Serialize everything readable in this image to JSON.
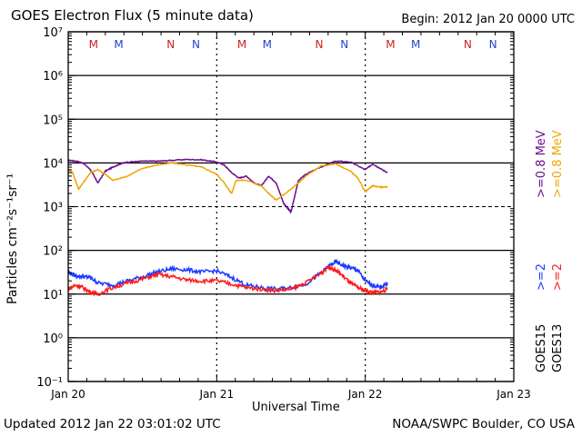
{
  "header": {
    "title": "GOES Electron Flux (5 minute data)",
    "begin": "Begin: 2012 Jan 20 0000 UTC"
  },
  "footer": {
    "updated": "Updated 2012 Jan 22 03:01:02 UTC",
    "credit": "NOAA/SWPC Boulder, CO USA"
  },
  "colors": {
    "goes15_high": "#6a0d91",
    "goes13_high": "#f0a500",
    "goes15_low": "#1a3cff",
    "goes13_low": "#ff1a1a",
    "marker_m": "#cc2222",
    "marker_m2": "#2244cc",
    "marker_n": "#cc2222",
    "marker_n2": "#2244cc"
  },
  "chart_data": {
    "type": "line",
    "xlabel": "Universal Time",
    "ylabel": "Particles cm⁻²s⁻¹sr⁻¹",
    "yscale": "log",
    "ylim": [
      0.1,
      10000000
    ],
    "xlim_days": [
      0,
      3
    ],
    "x_ticks": [
      "Jan 20",
      "Jan 21",
      "Jan 22",
      "Jan 23"
    ],
    "y_ticks": [
      "10⁻¹",
      "10⁰",
      "10¹",
      "10²",
      "10³",
      "10⁴",
      "10⁵",
      "10⁶",
      "10⁷"
    ],
    "threshold": 1000,
    "right_legend": [
      {
        "text": ">=0.8 MeV",
        "color": "#6a0d91"
      },
      {
        "text": ">=0.8 MeV",
        "color": "#f0a500"
      },
      {
        "text": ">=2",
        "color": "#1a3cff"
      },
      {
        "text": ">=2",
        "color": "#ff1a1a"
      },
      {
        "text": "GOES15",
        "color": "#000000"
      },
      {
        "text": "GOES13",
        "color": "#000000"
      }
    ],
    "markers": [
      {
        "label": "M",
        "day": 0.17,
        "color": "#cc2222"
      },
      {
        "label": "M",
        "day": 0.34,
        "color": "#2244cc"
      },
      {
        "label": "N",
        "day": 0.69,
        "color": "#cc2222"
      },
      {
        "label": "N",
        "day": 0.86,
        "color": "#2244cc"
      },
      {
        "label": "M",
        "day": 1.17,
        "color": "#cc2222"
      },
      {
        "label": "M",
        "day": 1.34,
        "color": "#2244cc"
      },
      {
        "label": "N",
        "day": 1.69,
        "color": "#cc2222"
      },
      {
        "label": "N",
        "day": 1.86,
        "color": "#2244cc"
      },
      {
        "label": "M",
        "day": 2.17,
        "color": "#cc2222"
      },
      {
        "label": "M",
        "day": 2.34,
        "color": "#2244cc"
      },
      {
        "label": "N",
        "day": 2.69,
        "color": "#cc2222"
      },
      {
        "label": "N",
        "day": 2.86,
        "color": "#2244cc"
      }
    ],
    "series": [
      {
        "name": "GOES15 >=0.8 MeV",
        "color": "#6a0d91",
        "x": [
          0.0,
          0.05,
          0.1,
          0.15,
          0.2,
          0.25,
          0.3,
          0.35,
          0.4,
          0.5,
          0.6,
          0.7,
          0.8,
          0.9,
          1.0,
          1.05,
          1.1,
          1.15,
          1.2,
          1.25,
          1.3,
          1.35,
          1.4,
          1.45,
          1.48,
          1.5,
          1.55,
          1.6,
          1.7,
          1.8,
          1.9,
          2.0,
          2.05,
          2.1,
          2.15
        ],
        "y": [
          11500,
          11000,
          10000,
          7000,
          3500,
          6500,
          8000,
          9500,
          10500,
          11000,
          11000,
          11500,
          12000,
          11800,
          10500,
          9000,
          6000,
          4500,
          5000,
          3500,
          3000,
          5000,
          3500,
          1200,
          900,
          750,
          4000,
          5500,
          8000,
          11000,
          10500,
          7000,
          9500,
          7500,
          6000
        ]
      },
      {
        "name": "GOES13 >=0.8 MeV",
        "color": "#f0a500",
        "x": [
          0.0,
          0.03,
          0.07,
          0.1,
          0.15,
          0.2,
          0.25,
          0.3,
          0.4,
          0.5,
          0.6,
          0.7,
          0.8,
          0.9,
          1.0,
          1.05,
          1.1,
          1.13,
          1.2,
          1.3,
          1.35,
          1.4,
          1.5,
          1.55,
          1.6,
          1.7,
          1.8,
          1.9,
          1.95,
          2.0,
          2.05,
          2.1,
          2.15
        ],
        "y": [
          7000,
          6000,
          2500,
          3500,
          6000,
          7000,
          5500,
          4000,
          5000,
          7500,
          9000,
          10000,
          9000,
          8000,
          5500,
          3500,
          2000,
          4000,
          4000,
          3000,
          2000,
          1400,
          2500,
          3500,
          5000,
          8500,
          9500,
          6500,
          4500,
          2200,
          3000,
          2800,
          2800
        ]
      },
      {
        "name": "GOES15 >=2",
        "color": "#1a3cff",
        "x": [
          0.0,
          0.05,
          0.1,
          0.15,
          0.2,
          0.3,
          0.4,
          0.5,
          0.6,
          0.7,
          0.8,
          0.9,
          1.0,
          1.1,
          1.2,
          1.3,
          1.4,
          1.5,
          1.6,
          1.7,
          1.75,
          1.8,
          1.85,
          1.9,
          1.95,
          2.0,
          2.05,
          2.1,
          2.15
        ],
        "y": [
          32,
          26,
          25,
          24,
          18,
          16,
          20,
          25,
          32,
          38,
          36,
          32,
          34,
          24,
          16,
          14,
          13,
          14,
          17,
          30,
          42,
          55,
          45,
          40,
          35,
          20,
          16,
          14,
          18
        ]
      },
      {
        "name": "GOES13 >=2",
        "color": "#ff1a1a",
        "x": [
          0.0,
          0.05,
          0.1,
          0.15,
          0.2,
          0.3,
          0.4,
          0.5,
          0.6,
          0.7,
          0.8,
          0.9,
          1.0,
          1.1,
          1.2,
          1.3,
          1.4,
          1.5,
          1.6,
          1.7,
          1.75,
          1.8,
          1.85,
          1.9,
          1.95,
          2.0,
          2.05,
          2.1,
          2.15
        ],
        "y": [
          13,
          16,
          14,
          11,
          10,
          14,
          18,
          22,
          28,
          25,
          21,
          20,
          20,
          17,
          14,
          13,
          12,
          13,
          18,
          30,
          42,
          35,
          26,
          18,
          14,
          12,
          11,
          11,
          13
        ]
      }
    ]
  }
}
